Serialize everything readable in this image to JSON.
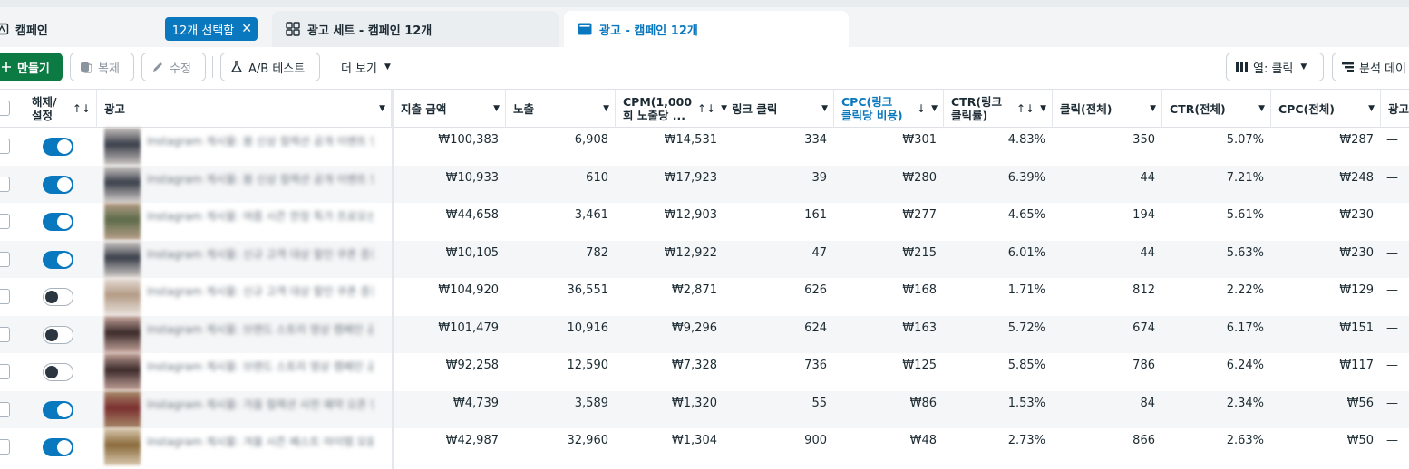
{
  "tabs": {
    "campaign": {
      "label": "캠페인",
      "selected_badge": "12개 선택함"
    },
    "adset": {
      "label": "광고 세트 - 캠페인 12개"
    },
    "ad": {
      "label": "광고 - 캠페인 12개"
    }
  },
  "toolbar": {
    "create_label": "만들기",
    "duplicate_label": "복제",
    "edit_label": "수정",
    "ab_test_label": "A/B 테스트",
    "more_label": "더 보기",
    "columns_label": "열: 클릭",
    "breakdown_label": "분석 데이"
  },
  "colors": {
    "accent": "#0a78be",
    "primary_button": "#0b7a43"
  },
  "table": {
    "headers": {
      "toggle": "해제/\n설정",
      "ad": "광고",
      "spend": "지출 금액",
      "impressions": "노출",
      "cpm": "CPM(1,000\n회 노출당 ...",
      "link_clicks": "링크 클릭",
      "cpc_link": "CPC(링크\n클릭당 비용)",
      "ctr_link": "CTR(링크\n클릭률)",
      "clicks_all": "클릭(전체)",
      "ctr_all": "CTR(전체)",
      "cpc_all": "CPC(전체)",
      "ad_extra": "광고"
    },
    "sort_arrows": "↑↓",
    "sort_desc": "↓",
    "dropdown": "▼",
    "rows": [
      {
        "enabled": true,
        "ad_name": "Instagram 게시물: 봄 신상 컬렉션 공개 이벤트 안내...",
        "thumb": [
          "#3a3f4a",
          "#c9c3c0"
        ],
        "spend": "₩100,383",
        "impressions": "6,908",
        "cpm": "₩14,531",
        "link_clicks": "334",
        "cpc_link": "₩301",
        "ctr_link": "4.83%",
        "clicks_all": "350",
        "ctr_all": "5.07%",
        "cpc_all": "₩287",
        "extra": "—"
      },
      {
        "enabled": true,
        "ad_name": "Instagram 게시물: 봄 신상 컬렉션 공개 이벤트 안내...",
        "thumb": [
          "#3a3f4a",
          "#d4cfcc"
        ],
        "spend": "₩10,933",
        "impressions": "610",
        "cpm": "₩17,923",
        "link_clicks": "39",
        "cpc_link": "₩280",
        "ctr_link": "6.39%",
        "clicks_all": "44",
        "ctr_all": "7.21%",
        "cpc_all": "₩248",
        "extra": "—"
      },
      {
        "enabled": true,
        "ad_name": "Instagram 게시물: 여름 시즌 한정 특가 프로모션 진행...",
        "thumb": [
          "#5d6b4a",
          "#b9a08a"
        ],
        "spend": "₩44,658",
        "impressions": "3,461",
        "cpm": "₩12,903",
        "link_clicks": "161",
        "cpc_link": "₩277",
        "ctr_link": "4.65%",
        "clicks_all": "194",
        "ctr_all": "5.61%",
        "cpc_all": "₩230",
        "extra": "—"
      },
      {
        "enabled": true,
        "ad_name": "Instagram 게시물: 신규 고객 대상 할인 쿠폰 증정 안내...",
        "thumb": [
          "#3a3f4a",
          "#d6d0cc"
        ],
        "spend": "₩10,105",
        "impressions": "782",
        "cpm": "₩12,922",
        "link_clicks": "47",
        "cpc_link": "₩215",
        "ctr_link": "6.01%",
        "clicks_all": "44",
        "ctr_all": "5.63%",
        "cpc_all": "₩230",
        "extra": "—"
      },
      {
        "enabled": false,
        "ad_name": "Instagram 게시물: 신규 고객 대상 할인 쿠폰 증정 안내...",
        "thumb": [
          "#b49c86",
          "#e8e0da"
        ],
        "spend": "₩104,920",
        "impressions": "36,551",
        "cpm": "₩2,871",
        "link_clicks": "626",
        "cpc_link": "₩168",
        "ctr_link": "1.71%",
        "clicks_all": "812",
        "ctr_all": "2.22%",
        "cpc_all": "₩129",
        "extra": "—"
      },
      {
        "enabled": false,
        "ad_name": "Instagram 게시물: 브랜드 스토리 영상 캠페인 공개...",
        "thumb": [
          "#3b2a2a",
          "#c9a9a0"
        ],
        "spend": "₩101,479",
        "impressions": "10,916",
        "cpm": "₩9,296",
        "link_clicks": "624",
        "cpc_link": "₩163",
        "ctr_link": "5.72%",
        "clicks_all": "674",
        "ctr_all": "6.17%",
        "cpc_all": "₩151",
        "extra": "—"
      },
      {
        "enabled": false,
        "ad_name": "Instagram 게시물: 브랜드 스토리 영상 캠페인 공개...",
        "thumb": [
          "#3b2a2a",
          "#c4a39a"
        ],
        "spend": "₩92,258",
        "impressions": "12,590",
        "cpm": "₩7,328",
        "link_clicks": "736",
        "cpc_link": "₩125",
        "ctr_link": "5.85%",
        "clicks_all": "786",
        "ctr_all": "6.24%",
        "cpc_all": "₩117",
        "extra": "—"
      },
      {
        "enabled": true,
        "ad_name": "Instagram 게시물: 가을 컬렉션 사전 예약 오픈 안내...",
        "thumb": [
          "#7a2f2f",
          "#a88a6a"
        ],
        "spend": "₩4,739",
        "impressions": "3,589",
        "cpm": "₩1,320",
        "link_clicks": "55",
        "cpc_link": "₩86",
        "ctr_link": "1.53%",
        "clicks_all": "84",
        "ctr_all": "2.34%",
        "cpc_all": "₩56",
        "extra": "—"
      },
      {
        "enabled": true,
        "ad_name": "Instagram 게시물: 겨울 시즌 베스트 아이템 모음전...",
        "thumb": [
          "#8a6a3a",
          "#d8c8b0"
        ],
        "spend": "₩42,987",
        "impressions": "32,960",
        "cpm": "₩1,304",
        "link_clicks": "900",
        "cpc_link": "₩48",
        "ctr_link": "2.73%",
        "clicks_all": "866",
        "ctr_all": "2.63%",
        "cpc_all": "₩50",
        "extra": "—"
      }
    ]
  }
}
